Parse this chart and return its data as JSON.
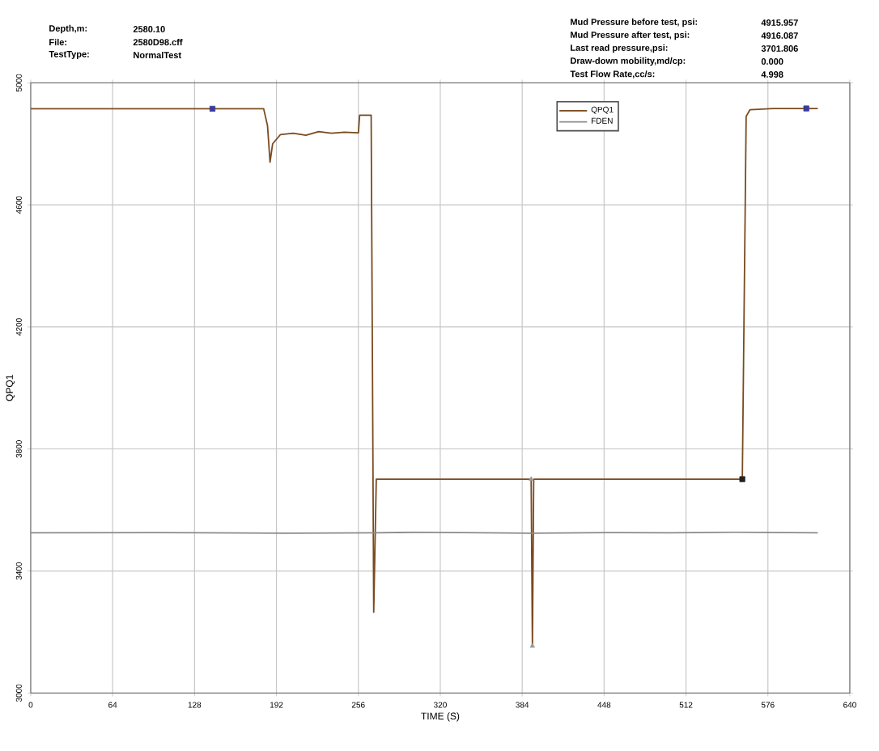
{
  "chart_data": {
    "type": "line",
    "xlabel": "TIME (S)",
    "ylabel": "QPQ1",
    "xlim": [
      0,
      640
    ],
    "xticks": [
      0,
      64,
      128,
      192,
      256,
      320,
      384,
      448,
      512,
      576,
      640
    ],
    "ylim": [
      3000,
      5000
    ],
    "yticks": [
      3000,
      3400,
      3800,
      4200,
      4600,
      5000
    ],
    "grid": true,
    "legend": "top",
    "annotations": [
      "Depth,m:",
      "File:",
      "TestType:",
      "2580.10",
      "2580D98.cff",
      "NormalTest",
      "Mud Pressure before test, psi:",
      "Mud Pressure after test, psi:",
      "Last read pressure,psi:",
      "Draw-down mobility,md/cp:",
      "Test Flow Rate,cc/s:",
      "4915.957",
      "4916.087",
      "3701.806",
      "0.000",
      "4.998"
    ],
    "series": [
      {
        "name": "QPQ1",
        "color": "#7a4a1e",
        "marker": "none",
        "x": [
          0,
          142,
          182,
          185,
          187,
          189,
          195,
          205,
          215,
          225,
          235,
          245,
          256,
          257,
          265,
          266,
          268,
          270,
          390,
          391,
          392,
          393,
          556,
          559,
          562,
          580,
          606,
          615
        ],
        "values": [
          4915,
          4915,
          4915,
          4860,
          4740,
          4800,
          4830,
          4835,
          4828,
          4840,
          4835,
          4838,
          4836,
          4894,
          4894,
          4894,
          3265,
          3701,
          3701,
          3701,
          3154,
          3701,
          3701,
          4890,
          4912,
          4916,
          4916,
          4916
        ]
      },
      {
        "name": "FDEN",
        "color": "#8a8a8a",
        "marker": "none",
        "x": [
          0,
          100,
          200,
          269,
          300,
          391,
          450,
          500,
          550,
          615
        ],
        "values": [
          3525,
          3526,
          3524,
          3525,
          3527,
          3524,
          3526,
          3525,
          3527,
          3525
        ]
      },
      {
        "type": "scatter",
        "color": "#3b3b9a",
        "marker": "square",
        "x": [
          142,
          606
        ],
        "values": [
          4915,
          4916
        ]
      },
      {
        "type": "scatter",
        "color": "#222222",
        "marker": "square",
        "x": [
          556
        ],
        "values": [
          3701
        ]
      },
      {
        "type": "scatter",
        "color": "#999999",
        "marker": "triangle",
        "x": [
          391,
          392
        ],
        "values": [
          3701,
          3154
        ]
      }
    ]
  }
}
